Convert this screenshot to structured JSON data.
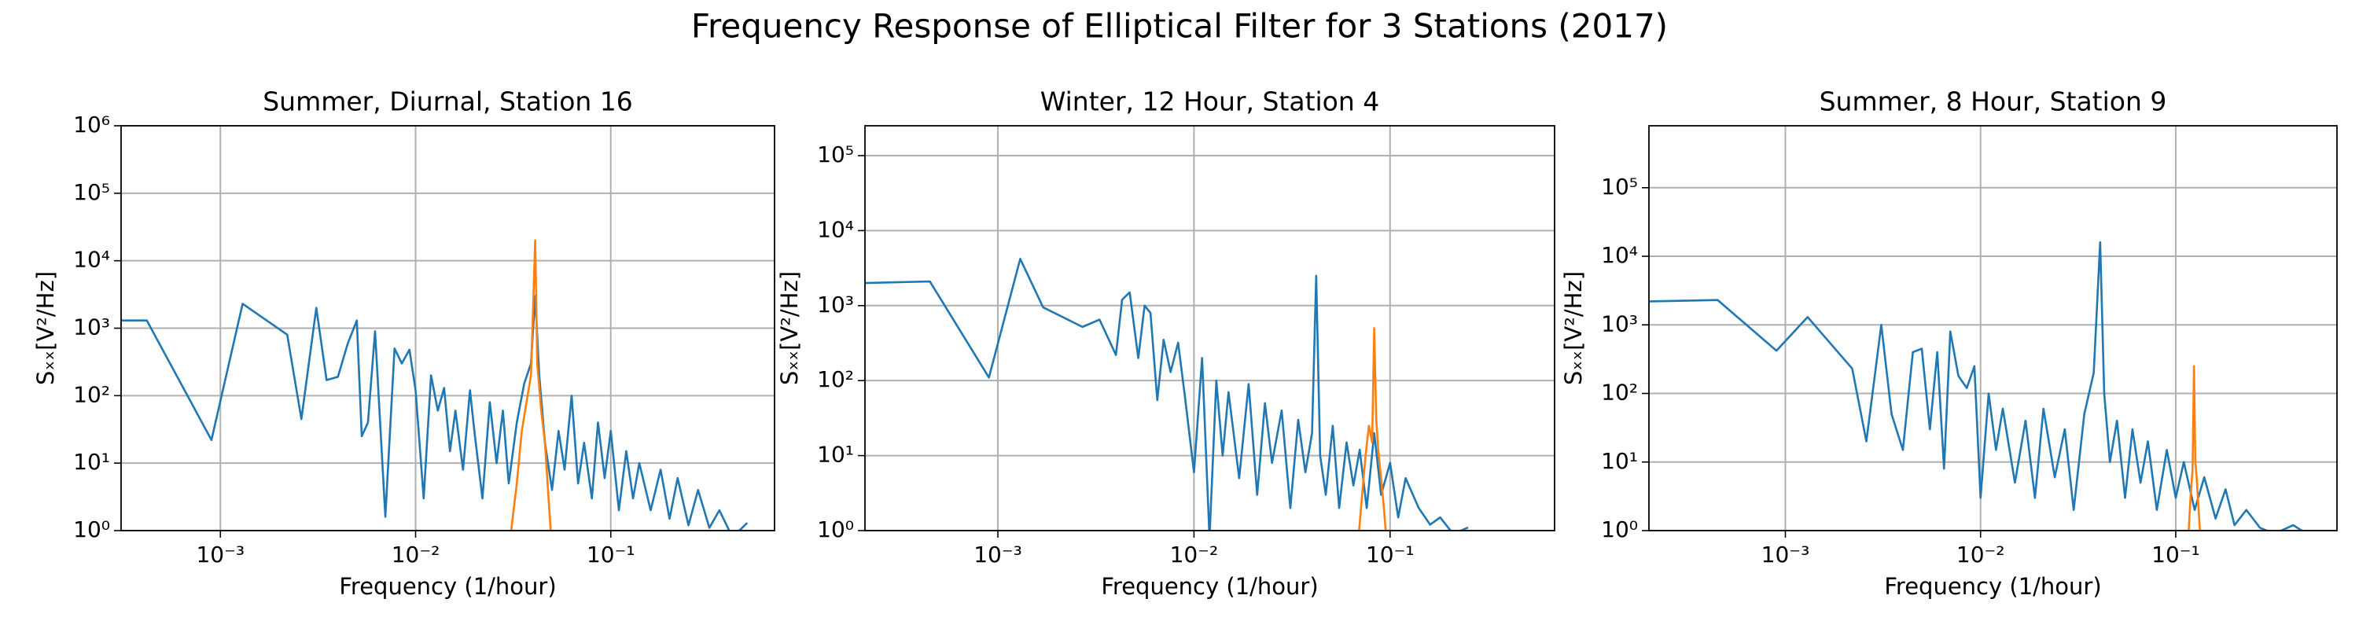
{
  "title": "Frequency Response of Elliptical Filter for 3 Stations (2017)",
  "chart_data": [
    {
      "type": "line",
      "title": "Summer, Diurnal, Station 16",
      "xlabel": "Frequency (1/hour)",
      "ylabel": "Sₓₓ[V²/Hz]",
      "xscale": "log",
      "yscale": "log",
      "grid": true,
      "xlim": [
        0.00031,
        0.69
      ],
      "ylim": [
        1,
        1000000
      ],
      "xticks": [
        {
          "value": 0.001,
          "label": "10⁻³"
        },
        {
          "value": 0.01,
          "label": "10⁻²"
        },
        {
          "value": 0.1,
          "label": "10⁻¹"
        }
      ],
      "yticks": [
        {
          "value": 1,
          "label": "10⁰"
        },
        {
          "value": 10,
          "label": "10¹"
        },
        {
          "value": 100,
          "label": "10²"
        },
        {
          "value": 1000,
          "label": "10³"
        },
        {
          "value": 10000,
          "label": "10⁴"
        },
        {
          "value": 100000,
          "label": "10⁵"
        },
        {
          "value": 1000000,
          "label": "10⁶"
        }
      ],
      "series": [
        {
          "color": "#1f77b4",
          "x": [
            0.00031,
            0.00042,
            0.0009,
            0.0013,
            0.0022,
            0.0026,
            0.0031,
            0.0035,
            0.004,
            0.0045,
            0.005,
            0.0053,
            0.0057,
            0.0062,
            0.007,
            0.0078,
            0.0085,
            0.0093,
            0.01,
            0.011,
            0.012,
            0.013,
            0.014,
            0.015,
            0.016,
            0.0175,
            0.019,
            0.02,
            0.022,
            0.024,
            0.026,
            0.028,
            0.03,
            0.033,
            0.036,
            0.039,
            0.041,
            0.043,
            0.046,
            0.05,
            0.054,
            0.058,
            0.063,
            0.068,
            0.073,
            0.08,
            0.086,
            0.093,
            0.1,
            0.11,
            0.12,
            0.13,
            0.14,
            0.16,
            0.18,
            0.2,
            0.22,
            0.25,
            0.28,
            0.32,
            0.36,
            0.42,
            0.5
          ],
          "values": [
            1300,
            1300,
            22,
            2300,
            800,
            45,
            2000,
            170,
            190,
            600,
            1300,
            25,
            40,
            900,
            1.6,
            500,
            300,
            480,
            120,
            3,
            200,
            60,
            130,
            15,
            60,
            8,
            120,
            30,
            3,
            80,
            10,
            60,
            5,
            40,
            150,
            300,
            3000,
            200,
            20,
            4,
            30,
            8,
            100,
            5,
            20,
            3,
            40,
            6,
            30,
            2,
            15,
            3,
            10,
            2,
            8,
            1.5,
            6,
            1.2,
            4,
            1.1,
            2,
            0.8,
            1.3
          ]
        },
        {
          "color": "#ff7f0e",
          "x": [
            0.03,
            0.033,
            0.035,
            0.037,
            0.039,
            0.041,
            0.042,
            0.044,
            0.046,
            0.048,
            0.05
          ],
          "values": [
            0.5,
            5,
            30,
            80,
            200,
            20000,
            300,
            60,
            20,
            3,
            0.5
          ]
        }
      ]
    },
    {
      "type": "line",
      "title": "Winter, 12 Hour, Station 4",
      "xlabel": "Frequency (1/hour)",
      "ylabel": "Sₓₓ[V²/Hz]",
      "xscale": "log",
      "yscale": "log",
      "grid": true,
      "xlim": [
        0.00021,
        0.69
      ],
      "ylim": [
        1,
        250000
      ],
      "xticks": [
        {
          "value": 0.001,
          "label": "10⁻³"
        },
        {
          "value": 0.01,
          "label": "10⁻²"
        },
        {
          "value": 0.1,
          "label": "10⁻¹"
        }
      ],
      "yticks": [
        {
          "value": 1,
          "label": "10⁰"
        },
        {
          "value": 10,
          "label": "10¹"
        },
        {
          "value": 100,
          "label": "10²"
        },
        {
          "value": 1000,
          "label": "10³"
        },
        {
          "value": 10000,
          "label": "10⁴"
        },
        {
          "value": 100000,
          "label": "10⁵"
        }
      ],
      "series": [
        {
          "color": "#1f77b4",
          "x": [
            0.00021,
            0.00045,
            0.0009,
            0.0013,
            0.0017,
            0.0027,
            0.0033,
            0.004,
            0.0043,
            0.0047,
            0.0052,
            0.0056,
            0.006,
            0.0065,
            0.007,
            0.0076,
            0.0083,
            0.009,
            0.01,
            0.011,
            0.012,
            0.013,
            0.014,
            0.015,
            0.017,
            0.019,
            0.021,
            0.023,
            0.025,
            0.028,
            0.031,
            0.034,
            0.037,
            0.04,
            0.042,
            0.044,
            0.047,
            0.051,
            0.055,
            0.06,
            0.065,
            0.07,
            0.076,
            0.083,
            0.09,
            0.1,
            0.11,
            0.12,
            0.14,
            0.16,
            0.18,
            0.21,
            0.25
          ],
          "values": [
            2000,
            2100,
            110,
            4200,
            950,
            520,
            650,
            220,
            1200,
            1500,
            200,
            1000,
            800,
            55,
            350,
            130,
            320,
            60,
            6,
            200,
            0.8,
            100,
            10,
            70,
            5,
            90,
            3,
            50,
            8,
            40,
            2,
            30,
            6,
            20,
            2500,
            10,
            3,
            25,
            2,
            15,
            4,
            12,
            2,
            20,
            3,
            8,
            1.5,
            5,
            2,
            1.2,
            1.5,
            0.9,
            1.1
          ]
        },
        {
          "color": "#ff7f0e",
          "x": [
            0.068,
            0.072,
            0.075,
            0.078,
            0.081,
            0.083,
            0.085,
            0.087,
            0.09,
            0.093,
            0.097
          ],
          "values": [
            0.5,
            3,
            10,
            25,
            15,
            500,
            30,
            12,
            5,
            2,
            0.5
          ]
        }
      ]
    },
    {
      "type": "line",
      "title": "Summer, 8 Hour, Station 9",
      "xlabel": "Frequency (1/hour)",
      "ylabel": "Sₓₓ[V²/Hz]",
      "xscale": "log",
      "yscale": "log",
      "grid": true,
      "xlim": [
        0.0002,
        0.67
      ],
      "ylim": [
        1,
        800000
      ],
      "xticks": [
        {
          "value": 0.001,
          "label": "10⁻³"
        },
        {
          "value": 0.01,
          "label": "10⁻²"
        },
        {
          "value": 0.1,
          "label": "10⁻¹"
        }
      ],
      "yticks": [
        {
          "value": 1,
          "label": "10⁰"
        },
        {
          "value": 10,
          "label": "10¹"
        },
        {
          "value": 100,
          "label": "10²"
        },
        {
          "value": 1000,
          "label": "10³"
        },
        {
          "value": 10000,
          "label": "10⁴"
        },
        {
          "value": 100000,
          "label": "10⁵"
        }
      ],
      "series": [
        {
          "color": "#1f77b4",
          "x": [
            0.0002,
            0.00045,
            0.0009,
            0.0013,
            0.0022,
            0.0026,
            0.0031,
            0.0035,
            0.004,
            0.0045,
            0.005,
            0.0055,
            0.006,
            0.0065,
            0.007,
            0.0077,
            0.0085,
            0.0093,
            0.01,
            0.011,
            0.012,
            0.013,
            0.015,
            0.017,
            0.019,
            0.021,
            0.024,
            0.027,
            0.03,
            0.034,
            0.038,
            0.041,
            0.043,
            0.046,
            0.05,
            0.055,
            0.06,
            0.066,
            0.072,
            0.08,
            0.09,
            0.1,
            0.11,
            0.125,
            0.14,
            0.16,
            0.18,
            0.2,
            0.23,
            0.27,
            0.32,
            0.4,
            0.5
          ],
          "values": [
            2200,
            2300,
            420,
            1300,
            230,
            20,
            1000,
            50,
            15,
            400,
            450,
            30,
            400,
            8,
            800,
            180,
            120,
            250,
            3,
            100,
            15,
            60,
            5,
            40,
            3,
            60,
            6,
            30,
            2,
            50,
            200,
            16000,
            100,
            10,
            40,
            3,
            30,
            5,
            20,
            2,
            15,
            3,
            10,
            2,
            6,
            1.5,
            4,
            1.2,
            2,
            1.1,
            0.9,
            1.2,
            0.8
          ]
        },
        {
          "color": "#ff7f0e",
          "x": [
            0.115,
            0.119,
            0.122,
            0.124,
            0.126,
            0.128,
            0.131,
            0.135
          ],
          "values": [
            0.5,
            3,
            8,
            250,
            10,
            6,
            2,
            0.5
          ]
        }
      ]
    }
  ]
}
